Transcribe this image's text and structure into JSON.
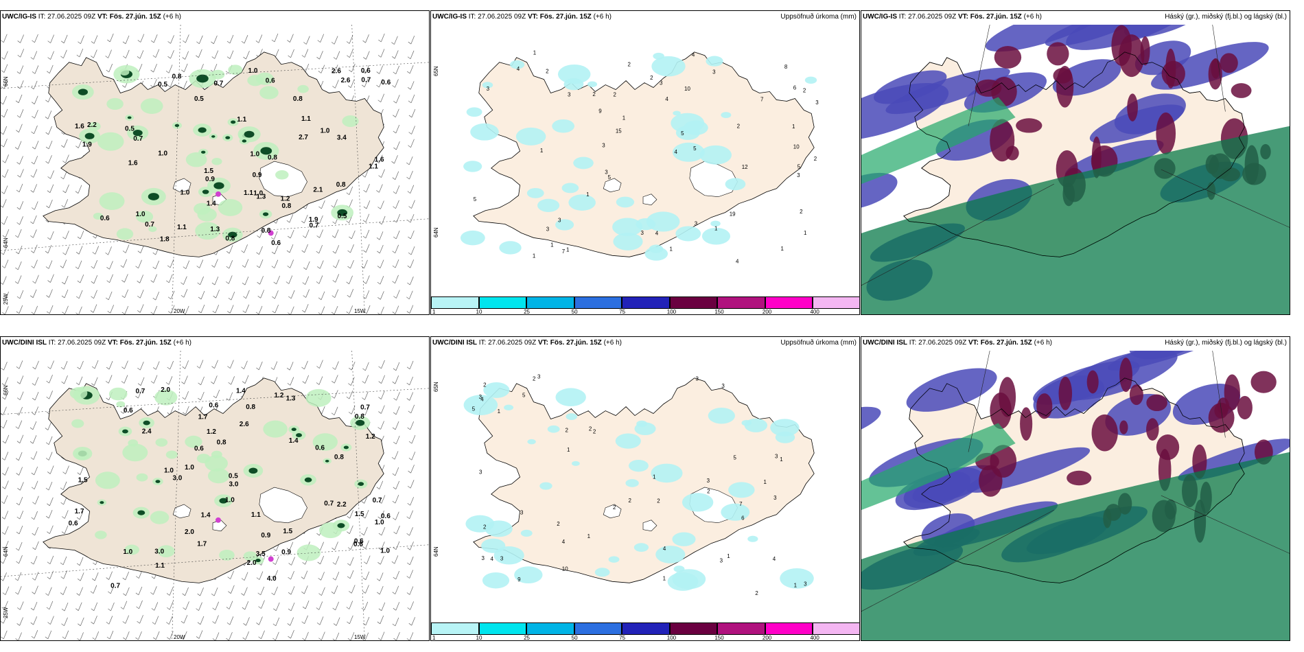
{
  "panels": [
    {
      "model": "UWC/IG-IS",
      "it_label": "IT:",
      "it_value": "27.06.2025 09Z",
      "vt_label": "VT:",
      "vt_value": "Fös. 27.jún. 15Z",
      "lead": "(+6 h)",
      "title_right": "",
      "type": "precip-rate-wind",
      "lat_labels": [
        "66N",
        "64N"
      ],
      "lon_labels": [
        "20W",
        "15W",
        "25W"
      ],
      "values": [
        "0.6",
        "0.5",
        "1.0",
        "0.5",
        "1.0",
        "0.8",
        "1.1",
        "1.0",
        "0.9",
        "0.7",
        "0.6",
        "1.6",
        "1.5",
        "1.0",
        "2.7",
        "2.6",
        "1.9",
        "2.6",
        "2.1",
        "3.4",
        "1.9",
        "1.3",
        "1.8",
        "0.7",
        "0.8",
        "1.1",
        "1.6",
        "0.7",
        "0.8",
        "0.5",
        "0.8",
        "0.6",
        "0.8",
        "1.1",
        "0.8",
        "1.3",
        "1.0",
        "2.2",
        "1.6",
        "1.2",
        "0.7",
        "1.0",
        "0.6",
        "0.5",
        "0.6",
        "0.8",
        "1.1",
        "1.4",
        "0.9",
        "0.7",
        "1.0",
        "1.1"
      ]
    },
    {
      "model": "UWC/IG-IS",
      "it_label": "IT:",
      "it_value": "27.06.2025 09Z",
      "vt_label": "VT:",
      "vt_value": "Fös. 27.jún. 15Z",
      "lead": "(+6 h)",
      "title_right": "Uppsöfnuð úrkoma (mm)",
      "type": "accum-precip",
      "lat_labels": [
        "65N",
        "64N"
      ],
      "values": [
        "5",
        "1",
        "2",
        "1",
        "2",
        "1",
        "3",
        "4",
        "5",
        "7",
        "5",
        "3",
        "1",
        "10",
        "5",
        "3",
        "2",
        "9",
        "3",
        "2",
        "1",
        "4",
        "6",
        "8",
        "4",
        "3",
        "3",
        "2",
        "1",
        "3",
        "2",
        "4",
        "12",
        "19",
        "15",
        "7",
        "3",
        "2",
        "3",
        "1",
        "1",
        "1",
        "5",
        "4",
        "3",
        "10",
        "1",
        "3",
        "2",
        "1",
        "3",
        "2",
        "4",
        "1"
      ]
    },
    {
      "model": "UWC/IG-IS",
      "it_label": "IT:",
      "it_value": "27.06.2025 09Z",
      "vt_label": "VT:",
      "vt_value": "Fös. 27.jún. 15Z",
      "lead": "(+6 h)",
      "title_right": "Háský (gr.), miðský (fj.bl.) og lágský (bl.)",
      "type": "cloud-layers"
    },
    {
      "model": "UWC/DINI ISL",
      "it_label": "IT:",
      "it_value": "27.06.2025 09Z",
      "vt_label": "VT:",
      "vt_value": "Fös. 27.jún. 15Z",
      "lead": "(+6 h)",
      "title_right": "",
      "type": "precip-rate-wind",
      "lat_labels": [
        "66N",
        "64N"
      ],
      "lon_labels": [
        "20W",
        "15W",
        "25W"
      ],
      "values": [
        "1.0",
        "0.6",
        "0.9",
        "1.0",
        "3.0",
        "0.6",
        "0.6",
        "2.0",
        "0.6",
        "1.2",
        "3.0",
        "1.0",
        "0.8",
        "0.6",
        "1.4",
        "1.7",
        "0.6",
        "3.0",
        "0.7",
        "1.4",
        "2.4",
        "1.7",
        "2.0",
        "1.1",
        "0.8",
        "1.0",
        "1.3",
        "3.5",
        "1.7",
        "0.6",
        "0.8",
        "1.5",
        "2.6",
        "4.0",
        "1.2",
        "0.7",
        "2.0",
        "1.1",
        "0.8",
        "1.0",
        "1.5",
        "1.4",
        "0.9",
        "2.2",
        "0.7",
        "0.7",
        "0.6",
        "1.0",
        "1.2",
        "1.5",
        "0.7",
        "0.5"
      ]
    },
    {
      "model": "UWC/DINI ISL",
      "it_label": "IT:",
      "it_value": "27.06.2025 09Z",
      "vt_label": "VT:",
      "vt_value": "Fös. 27.jún. 15Z",
      "lead": "(+6 h)",
      "title_right": "Uppsöfnuð úrkoma (mm)",
      "type": "accum-precip",
      "lat_labels": [
        "65N",
        "64N"
      ],
      "values": [
        "2",
        "1",
        "3",
        "4",
        "3",
        "2",
        "1",
        "2",
        "3",
        "4",
        "5",
        "6",
        "2",
        "3",
        "4",
        "5",
        "10",
        "7",
        "3",
        "9",
        "5",
        "3",
        "2",
        "1",
        "4",
        "3",
        "2",
        "1",
        "2",
        "3",
        "2",
        "1",
        "3",
        "3",
        "2",
        "4",
        "1",
        "3",
        "2",
        "1",
        "2",
        "3",
        "1",
        "2",
        "1",
        "3"
      ]
    },
    {
      "model": "UWC/DINI ISL",
      "it_label": "IT:",
      "it_value": "27.06.2025 09Z",
      "vt_label": "VT:",
      "vt_value": "Fös. 27.jún. 15Z",
      "lead": "(+6 h)",
      "title_right": "Háský (gr.), miðský (fj.bl.) og lágský (bl.)",
      "type": "cloud-layers"
    }
  ],
  "colorbar": {
    "labels": [
      "1",
      "10",
      "25",
      "50",
      "75",
      "100",
      "150",
      "200",
      "400"
    ],
    "colors": [
      "#b8f4f6",
      "#00e5ee",
      "#00b4e6",
      "#2c6fe0",
      "#2222b8",
      "#6a0040",
      "#b0127e",
      "#ff00c8",
      "#f4b6f2"
    ]
  },
  "colors": {
    "land": "#efe4d6",
    "land_light": "#fbeee0",
    "precip_light": "#bef0be",
    "precip_dark": "#0e4d26",
    "accum": "#b2f2f4",
    "high_cloud": "#0a7a4a",
    "mid_cloud": "#6a0e3e",
    "low_cloud": "#4a4ab8"
  }
}
